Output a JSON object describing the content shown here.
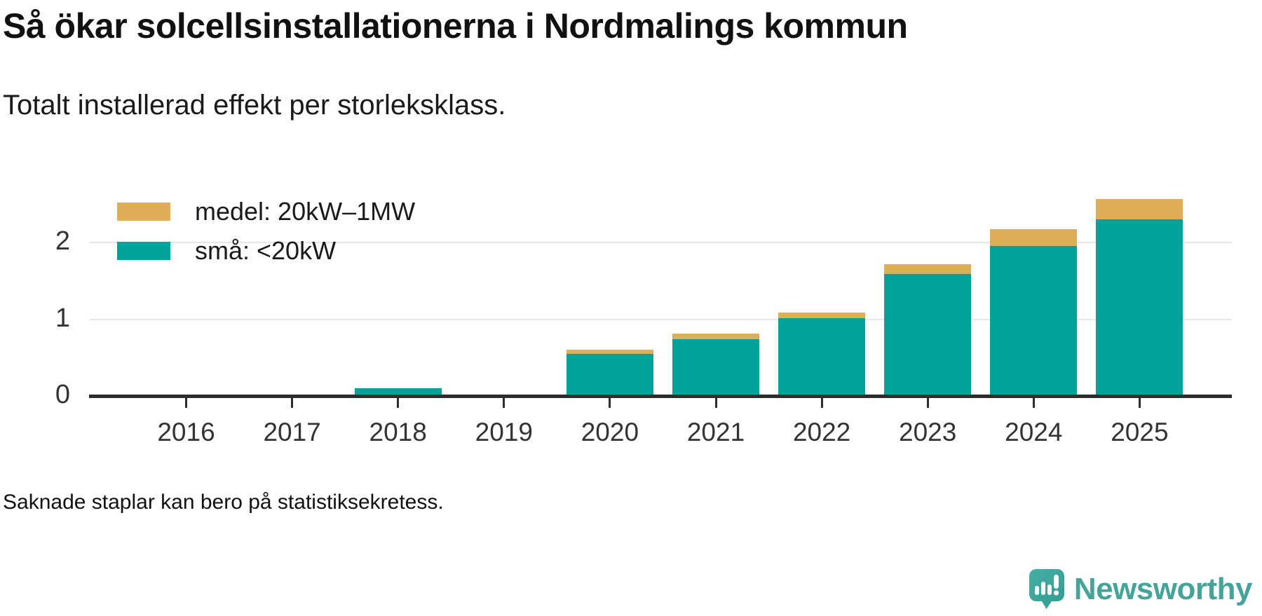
{
  "header": {
    "title": "Så ökar solcellsinstallationerna i Nordmalings kommun",
    "subtitle": "Totalt installerad effekt per storleksklass."
  },
  "chart_data": {
    "type": "bar",
    "stacked": true,
    "title": "Så ökar solcellsinstallationerna i Nordmalings kommun",
    "subtitle": "Totalt installerad effekt per storleksklass.",
    "categories": [
      "2016",
      "2017",
      "2018",
      "2019",
      "2020",
      "2021",
      "2022",
      "2023",
      "2024",
      "2025"
    ],
    "series": [
      {
        "name": "medel: 20kW–1MW",
        "color": "#dfae57",
        "values": [
          0,
          0,
          0,
          0,
          0.05,
          0.07,
          0.08,
          0.13,
          0.22,
          0.27
        ]
      },
      {
        "name": "små: <20kW",
        "color": "#00a29a",
        "values": [
          0,
          0,
          0.1,
          0,
          0.55,
          0.74,
          1.01,
          1.59,
          1.95,
          2.3
        ]
      }
    ],
    "xlabel": "",
    "ylabel": "",
    "yticks": [
      0,
      1,
      2
    ],
    "ylim": [
      0,
      2.6
    ],
    "grid": "horizontal",
    "legend_position": "top-left",
    "note": "Stacking order bottom-to-top: små, medel"
  },
  "footer": {
    "note": "Saknade staplar kan bero på statistiksekretess."
  },
  "branding": {
    "name": "Newsworthy",
    "logo_icon": "speech-bubble-bar-chart-icon",
    "icon_color_light": "#47b0a6",
    "icon_color_dark": "#319b90",
    "wordmark_color": "#45a399"
  }
}
